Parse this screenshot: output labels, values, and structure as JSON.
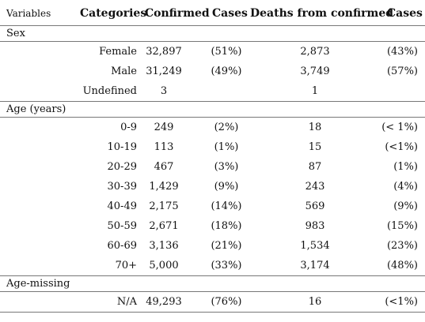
{
  "header": {
    "variables": "Variables",
    "categories": "Categories",
    "confirmed": "Confirmed",
    "confirmed_cases": "Cases",
    "deaths": "Deaths from confirmed",
    "deaths_cases": "Cases"
  },
  "sections": [
    {
      "label": "Sex",
      "rows": [
        {
          "category": "Female",
          "confirmed": "32,897",
          "confirmed_pct": "(51%)",
          "deaths": "2,873",
          "deaths_pct": "(43%)"
        },
        {
          "category": "Male",
          "confirmed": "31,249",
          "confirmed_pct": "(49%)",
          "deaths": "3,749",
          "deaths_pct": "(57%)"
        },
        {
          "category": "Undefined",
          "confirmed": "3",
          "confirmed_pct": "",
          "deaths": "1",
          "deaths_pct": ""
        }
      ]
    },
    {
      "label": "Age (years)",
      "rows": [
        {
          "category": "0-9",
          "confirmed": "249",
          "confirmed_pct": "(2%)",
          "deaths": "18",
          "deaths_pct": "(< 1%)"
        },
        {
          "category": "10-19",
          "confirmed": "113",
          "confirmed_pct": "(1%)",
          "deaths": "15",
          "deaths_pct": "(<1%)"
        },
        {
          "category": "20-29",
          "confirmed": "467",
          "confirmed_pct": "(3%)",
          "deaths": "87",
          "deaths_pct": "(1%)"
        },
        {
          "category": "30-39",
          "confirmed": "1,429",
          "confirmed_pct": "(9%)",
          "deaths": "243",
          "deaths_pct": "(4%)"
        },
        {
          "category": "40-49",
          "confirmed": "2,175",
          "confirmed_pct": "(14%)",
          "deaths": "569",
          "deaths_pct": "(9%)"
        },
        {
          "category": "50-59",
          "confirmed": "2,671",
          "confirmed_pct": "(18%)",
          "deaths": "983",
          "deaths_pct": "(15%)"
        },
        {
          "category": "60-69",
          "confirmed": "3,136",
          "confirmed_pct": "(21%)",
          "deaths": "1,534",
          "deaths_pct": "(23%)"
        },
        {
          "category": "70+",
          "confirmed": "5,000",
          "confirmed_pct": "(33%)",
          "deaths": "3,174",
          "deaths_pct": "(48%)"
        }
      ]
    },
    {
      "label": "Age-missing",
      "rows": [
        {
          "category": "N/A",
          "confirmed": "49,293",
          "confirmed_pct": "(76%)",
          "deaths": "16",
          "deaths_pct": "(<1%)"
        }
      ]
    }
  ]
}
